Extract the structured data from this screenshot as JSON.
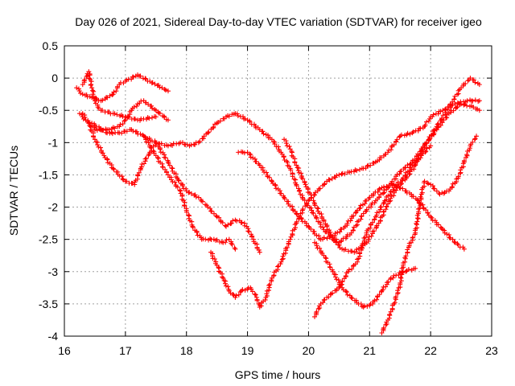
{
  "chart_data": {
    "type": "scatter",
    "title": "Day 026 of 2021, Sidereal Day-to-day VTEC variation (SDTVAR) for receiver igeo",
    "xlabel": "GPS time / hours",
    "ylabel": "SDTVAR / TECUs",
    "xlim": [
      16,
      23
    ],
    "ylim": [
      -4,
      0.5
    ],
    "xticks": [
      "16",
      "17",
      "18",
      "19",
      "20",
      "21",
      "22",
      "23"
    ],
    "yticks": [
      "0.5",
      "0",
      "-0.5",
      "-1",
      "-1.5",
      "-2",
      "-2.5",
      "-3",
      "-3.5",
      "-4"
    ],
    "grid": true,
    "marker": "+",
    "series_color": "#ff0000",
    "series": [
      {
        "name": "track-a",
        "points": [
          [
            16.3,
            -0.1
          ],
          [
            16.4,
            0.1
          ],
          [
            16.45,
            -0.15
          ],
          [
            16.5,
            -0.35
          ],
          [
            16.55,
            -0.45
          ],
          [
            16.6,
            -0.5
          ],
          [
            16.8,
            -0.55
          ],
          [
            17.0,
            -0.6
          ],
          [
            17.2,
            -0.65
          ],
          [
            17.5,
            -0.6
          ]
        ]
      },
      {
        "name": "track-b",
        "points": [
          [
            16.25,
            -0.55
          ],
          [
            16.35,
            -0.65
          ],
          [
            16.5,
            -0.8
          ],
          [
            16.7,
            -0.8
          ],
          [
            16.9,
            -0.75
          ],
          [
            17.0,
            -0.65
          ],
          [
            17.1,
            -0.5
          ],
          [
            17.2,
            -0.4
          ],
          [
            17.3,
            -0.35
          ],
          [
            17.5,
            -0.5
          ],
          [
            17.7,
            -0.65
          ]
        ]
      },
      {
        "name": "track-c",
        "points": [
          [
            16.2,
            -0.15
          ],
          [
            16.3,
            -0.25
          ],
          [
            16.45,
            -0.3
          ],
          [
            16.6,
            -0.35
          ],
          [
            16.8,
            -0.25
          ],
          [
            16.9,
            -0.1
          ],
          [
            17.0,
            -0.05
          ],
          [
            17.2,
            0.05
          ],
          [
            17.4,
            -0.05
          ],
          [
            17.6,
            -0.15
          ],
          [
            17.7,
            -0.2
          ]
        ]
      },
      {
        "name": "track-d",
        "points": [
          [
            16.3,
            -0.55
          ],
          [
            16.4,
            -0.7
          ],
          [
            16.5,
            -0.95
          ],
          [
            16.65,
            -1.2
          ],
          [
            16.8,
            -1.4
          ],
          [
            17.0,
            -1.6
          ],
          [
            17.15,
            -1.65
          ],
          [
            17.25,
            -1.4
          ],
          [
            17.4,
            -1.15
          ],
          [
            17.5,
            -1.0
          ],
          [
            17.7,
            -1.05
          ],
          [
            17.9,
            -1.0
          ],
          [
            18.05,
            -1.05
          ],
          [
            18.2,
            -1.0
          ],
          [
            18.35,
            -0.85
          ],
          [
            18.5,
            -0.7
          ],
          [
            18.65,
            -0.6
          ],
          [
            18.8,
            -0.55
          ],
          [
            19.0,
            -0.65
          ],
          [
            19.2,
            -0.8
          ],
          [
            19.4,
            -0.95
          ],
          [
            19.55,
            -1.15
          ],
          [
            19.7,
            -1.4
          ],
          [
            19.8,
            -1.65
          ],
          [
            19.9,
            -1.85
          ],
          [
            20.05,
            -2.05
          ],
          [
            20.25,
            -2.35
          ],
          [
            20.5,
            -2.55
          ],
          [
            20.7,
            -2.4
          ],
          [
            20.9,
            -2.1
          ],
          [
            21.1,
            -1.9
          ],
          [
            21.3,
            -1.7
          ],
          [
            21.5,
            -1.45
          ],
          [
            21.7,
            -1.3
          ],
          [
            21.9,
            -1.05
          ],
          [
            22.1,
            -0.8
          ],
          [
            22.3,
            -0.55
          ],
          [
            22.5,
            -0.4
          ],
          [
            22.7,
            -0.45
          ],
          [
            22.8,
            -0.5
          ]
        ]
      },
      {
        "name": "track-e",
        "points": [
          [
            16.45,
            -0.7
          ],
          [
            16.7,
            -0.85
          ],
          [
            16.9,
            -0.85
          ],
          [
            17.1,
            -0.8
          ],
          [
            17.3,
            -0.9
          ],
          [
            17.5,
            -1.0
          ],
          [
            17.7,
            -1.3
          ],
          [
            17.85,
            -1.55
          ],
          [
            18.0,
            -1.75
          ],
          [
            18.2,
            -1.85
          ],
          [
            18.35,
            -2.0
          ],
          [
            18.5,
            -2.15
          ],
          [
            18.65,
            -2.3
          ],
          [
            18.8,
            -2.2
          ],
          [
            18.95,
            -2.25
          ],
          [
            19.1,
            -2.5
          ],
          [
            19.2,
            -2.7
          ]
        ]
      },
      {
        "name": "track-f",
        "points": [
          [
            17.3,
            -0.9
          ],
          [
            17.5,
            -1.2
          ],
          [
            17.7,
            -1.5
          ],
          [
            17.9,
            -1.75
          ],
          [
            18.0,
            -2.05
          ],
          [
            18.1,
            -2.3
          ],
          [
            18.25,
            -2.5
          ],
          [
            18.45,
            -2.5
          ],
          [
            18.6,
            -2.55
          ],
          [
            18.7,
            -2.5
          ],
          [
            18.8,
            -2.65
          ]
        ]
      },
      {
        "name": "track-g",
        "points": [
          [
            18.4,
            -2.7
          ],
          [
            18.5,
            -2.9
          ],
          [
            18.6,
            -3.1
          ],
          [
            18.7,
            -3.3
          ],
          [
            18.8,
            -3.4
          ],
          [
            18.9,
            -3.3
          ],
          [
            19.05,
            -3.25
          ],
          [
            19.15,
            -3.4
          ],
          [
            19.2,
            -3.55
          ],
          [
            19.3,
            -3.4
          ],
          [
            19.4,
            -3.1
          ],
          [
            19.55,
            -2.85
          ],
          [
            19.7,
            -2.5
          ],
          [
            19.8,
            -2.25
          ],
          [
            19.9,
            -2.05
          ],
          [
            20.0,
            -1.9
          ],
          [
            20.15,
            -1.75
          ],
          [
            20.3,
            -1.6
          ],
          [
            20.5,
            -1.5
          ],
          [
            20.7,
            -1.45
          ],
          [
            20.9,
            -1.4
          ],
          [
            21.1,
            -1.3
          ],
          [
            21.3,
            -1.15
          ],
          [
            21.5,
            -0.9
          ],
          [
            21.7,
            -0.85
          ],
          [
            21.9,
            -0.75
          ],
          [
            22.0,
            -0.6
          ],
          [
            22.2,
            -0.5
          ],
          [
            22.4,
            -0.4
          ],
          [
            22.6,
            -0.35
          ],
          [
            22.8,
            -0.35
          ]
        ]
      },
      {
        "name": "track-h",
        "points": [
          [
            18.85,
            -1.15
          ],
          [
            19.0,
            -1.15
          ],
          [
            19.2,
            -1.35
          ],
          [
            19.4,
            -1.6
          ],
          [
            19.6,
            -1.85
          ],
          [
            19.8,
            -2.1
          ],
          [
            20.0,
            -2.3
          ],
          [
            20.2,
            -2.5
          ],
          [
            20.4,
            -2.45
          ],
          [
            20.6,
            -2.3
          ],
          [
            20.8,
            -2.05
          ],
          [
            21.0,
            -1.85
          ],
          [
            21.2,
            -1.7
          ],
          [
            21.4,
            -1.65
          ],
          [
            21.6,
            -1.75
          ],
          [
            21.8,
            -1.9
          ],
          [
            22.0,
            -2.15
          ],
          [
            22.2,
            -2.35
          ],
          [
            22.4,
            -2.55
          ],
          [
            22.55,
            -2.65
          ]
        ]
      },
      {
        "name": "track-i",
        "points": [
          [
            19.6,
            -0.95
          ],
          [
            19.7,
            -1.1
          ],
          [
            19.8,
            -1.35
          ],
          [
            19.95,
            -1.65
          ],
          [
            20.1,
            -1.95
          ],
          [
            20.25,
            -2.2
          ],
          [
            20.4,
            -2.5
          ],
          [
            20.55,
            -2.65
          ],
          [
            20.75,
            -2.7
          ],
          [
            20.95,
            -2.55
          ],
          [
            21.15,
            -2.25
          ],
          [
            21.3,
            -1.95
          ],
          [
            21.45,
            -1.7
          ],
          [
            21.6,
            -1.55
          ],
          [
            21.75,
            -1.35
          ],
          [
            21.9,
            -1.05
          ],
          [
            22.1,
            -0.75
          ],
          [
            22.3,
            -0.45
          ],
          [
            22.5,
            -0.15
          ],
          [
            22.65,
            0.0
          ],
          [
            22.8,
            -0.1
          ]
        ]
      },
      {
        "name": "track-j",
        "points": [
          [
            20.1,
            -3.7
          ],
          [
            20.2,
            -3.5
          ],
          [
            20.3,
            -3.4
          ],
          [
            20.5,
            -3.25
          ],
          [
            20.65,
            -3.0
          ],
          [
            20.8,
            -2.85
          ],
          [
            20.95,
            -2.4
          ],
          [
            21.1,
            -2.15
          ],
          [
            21.25,
            -1.9
          ],
          [
            21.4,
            -1.7
          ],
          [
            21.55,
            -1.55
          ],
          [
            21.7,
            -1.35
          ],
          [
            21.85,
            -1.2
          ],
          [
            22.0,
            -1.05
          ]
        ]
      },
      {
        "name": "track-k",
        "points": [
          [
            20.1,
            -2.55
          ],
          [
            20.25,
            -2.75
          ],
          [
            20.4,
            -3.0
          ],
          [
            20.55,
            -3.25
          ],
          [
            20.7,
            -3.4
          ],
          [
            20.9,
            -3.55
          ],
          [
            21.05,
            -3.5
          ],
          [
            21.2,
            -3.3
          ],
          [
            21.35,
            -3.1
          ],
          [
            21.55,
            -3.0
          ],
          [
            21.75,
            -2.95
          ]
        ]
      },
      {
        "name": "track-l",
        "points": [
          [
            21.2,
            -3.95
          ],
          [
            21.3,
            -3.75
          ],
          [
            21.4,
            -3.5
          ],
          [
            21.5,
            -3.2
          ],
          [
            21.55,
            -2.9
          ],
          [
            21.65,
            -2.6
          ],
          [
            21.75,
            -2.4
          ],
          [
            21.8,
            -2.1
          ],
          [
            21.85,
            -1.8
          ],
          [
            21.9,
            -1.6
          ],
          [
            22.0,
            -1.65
          ],
          [
            22.15,
            -1.8
          ],
          [
            22.3,
            -1.75
          ],
          [
            22.45,
            -1.55
          ],
          [
            22.55,
            -1.3
          ],
          [
            22.65,
            -1.05
          ],
          [
            22.75,
            -0.9
          ]
        ]
      }
    ]
  }
}
